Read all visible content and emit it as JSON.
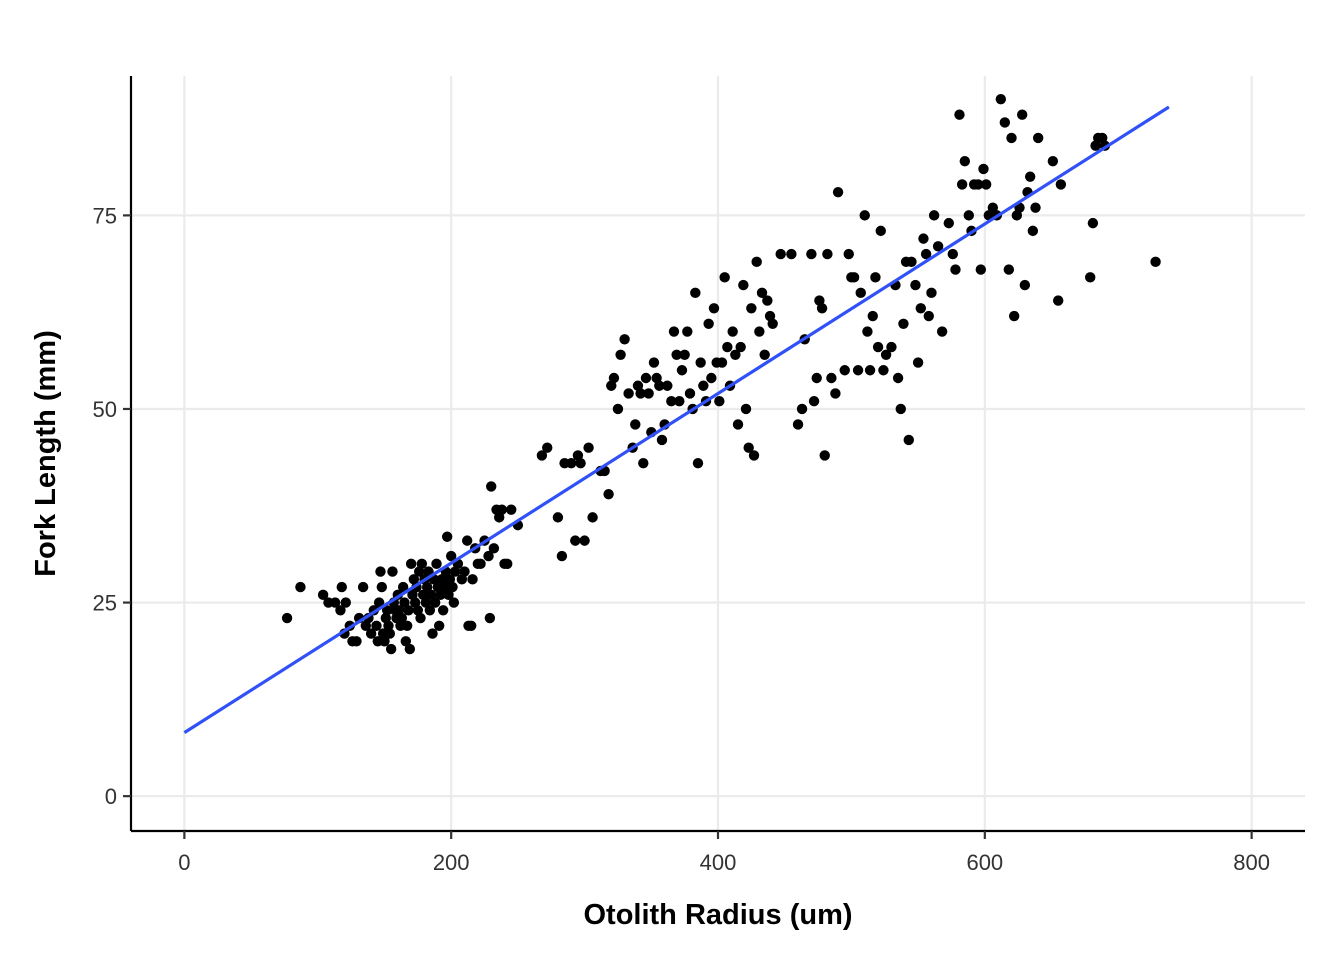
{
  "chart_data": {
    "type": "scatter",
    "title": "",
    "xlabel": "Otolith Radius (um)",
    "ylabel": "Fork Length (mm)",
    "xlim": [
      -40,
      840
    ],
    "ylim": [
      -4.5,
      93
    ],
    "x_ticks": [
      0,
      200,
      400,
      600,
      800
    ],
    "y_ticks": [
      0,
      25,
      50,
      75
    ],
    "x_tick_labels": [
      "0",
      "200",
      "400",
      "600",
      "800"
    ],
    "y_tick_labels": [
      "0",
      "25",
      "50",
      "75"
    ],
    "grid": true,
    "legend": "none",
    "point_color": "#000000",
    "line_color": "#3050F8",
    "fit_line": {
      "x": [
        0,
        738
      ],
      "y": [
        8.2,
        89
      ]
    },
    "points": [
      [
        77,
        23
      ],
      [
        87,
        27
      ],
      [
        104,
        26
      ],
      [
        108,
        25
      ],
      [
        113,
        25
      ],
      [
        117,
        24
      ],
      [
        118,
        27
      ],
      [
        120,
        21
      ],
      [
        121,
        25
      ],
      [
        124,
        22
      ],
      [
        126,
        20
      ],
      [
        129,
        20
      ],
      [
        131,
        23
      ],
      [
        134,
        27
      ],
      [
        136,
        22
      ],
      [
        138,
        23
      ],
      [
        140,
        21
      ],
      [
        142,
        24
      ],
      [
        144,
        22
      ],
      [
        145,
        20
      ],
      [
        146,
        25
      ],
      [
        147,
        29
      ],
      [
        148,
        27
      ],
      [
        149,
        21
      ],
      [
        150,
        20
      ],
      [
        151,
        23
      ],
      [
        152,
        24
      ],
      [
        153,
        22
      ],
      [
        154,
        21
      ],
      [
        155,
        19
      ],
      [
        156,
        29
      ],
      [
        157,
        25
      ],
      [
        158,
        24
      ],
      [
        159,
        23
      ],
      [
        160,
        26
      ],
      [
        161,
        24
      ],
      [
        162,
        22
      ],
      [
        163,
        23
      ],
      [
        164,
        27
      ],
      [
        165,
        25
      ],
      [
        166,
        20
      ],
      [
        167,
        22
      ],
      [
        168,
        24
      ],
      [
        169,
        19
      ],
      [
        170,
        30
      ],
      [
        171,
        26
      ],
      [
        172,
        28
      ],
      [
        173,
        25
      ],
      [
        174,
        27
      ],
      [
        175,
        24
      ],
      [
        176,
        29
      ],
      [
        177,
        23
      ],
      [
        178,
        30
      ],
      [
        179,
        26
      ],
      [
        180,
        28
      ],
      [
        181,
        25
      ],
      [
        182,
        27
      ],
      [
        183,
        29
      ],
      [
        184,
        24
      ],
      [
        185,
        26
      ],
      [
        186,
        21
      ],
      [
        187,
        28
      ],
      [
        188,
        25
      ],
      [
        189,
        30
      ],
      [
        190,
        27
      ],
      [
        191,
        22
      ],
      [
        192,
        26
      ],
      [
        193,
        28
      ],
      [
        194,
        24
      ],
      [
        195,
        27
      ],
      [
        196,
        29
      ],
      [
        197,
        33.5
      ],
      [
        198,
        26
      ],
      [
        199,
        28
      ],
      [
        200,
        31
      ],
      [
        201,
        27
      ],
      [
        202,
        25
      ],
      [
        203,
        29
      ],
      [
        205,
        30
      ],
      [
        208,
        28
      ],
      [
        210,
        29
      ],
      [
        212,
        33
      ],
      [
        213,
        22
      ],
      [
        215,
        22
      ],
      [
        216,
        28
      ],
      [
        218,
        32
      ],
      [
        220,
        30
      ],
      [
        222,
        30
      ],
      [
        225,
        33
      ],
      [
        228,
        31
      ],
      [
        229,
        23
      ],
      [
        230,
        40
      ],
      [
        232,
        32
      ],
      [
        234,
        37
      ],
      [
        236,
        36
      ],
      [
        238,
        37
      ],
      [
        240,
        30
      ],
      [
        242,
        30
      ],
      [
        245,
        37
      ],
      [
        250,
        35
      ],
      [
        268,
        44
      ],
      [
        272,
        45
      ],
      [
        280,
        36
      ],
      [
        283,
        31
      ],
      [
        285,
        43
      ],
      [
        290,
        43
      ],
      [
        293,
        33
      ],
      [
        295,
        44
      ],
      [
        297,
        43
      ],
      [
        300,
        33
      ],
      [
        303,
        45
      ],
      [
        306,
        36
      ],
      [
        312,
        42
      ],
      [
        315,
        42
      ],
      [
        318,
        39
      ],
      [
        320,
        53
      ],
      [
        322,
        54
      ],
      [
        325,
        50
      ],
      [
        327,
        57
      ],
      [
        330,
        59
      ],
      [
        333,
        52
      ],
      [
        336,
        45
      ],
      [
        338,
        48
      ],
      [
        340,
        53
      ],
      [
        342,
        52
      ],
      [
        344,
        43
      ],
      [
        346,
        54
      ],
      [
        348,
        52
      ],
      [
        350,
        47
      ],
      [
        352,
        56
      ],
      [
        354,
        54
      ],
      [
        356,
        53
      ],
      [
        358,
        46
      ],
      [
        360,
        48
      ],
      [
        362,
        53
      ],
      [
        365,
        51
      ],
      [
        367,
        60
      ],
      [
        369,
        57
      ],
      [
        371,
        51
      ],
      [
        373,
        55
      ],
      [
        375,
        57
      ],
      [
        377,
        60
      ],
      [
        379,
        52
      ],
      [
        381,
        50
      ],
      [
        383,
        65
      ],
      [
        385,
        43
      ],
      [
        387,
        56
      ],
      [
        389,
        53
      ],
      [
        391,
        51
      ],
      [
        393,
        61
      ],
      [
        395,
        54
      ],
      [
        397,
        63
      ],
      [
        399,
        56
      ],
      [
        401,
        51
      ],
      [
        403,
        56
      ],
      [
        405,
        67
      ],
      [
        407,
        58
      ],
      [
        409,
        53
      ],
      [
        411,
        60
      ],
      [
        413,
        57
      ],
      [
        415,
        48
      ],
      [
        417,
        58
      ],
      [
        419,
        66
      ],
      [
        421,
        50
      ],
      [
        423,
        45
      ],
      [
        425,
        63
      ],
      [
        427,
        44
      ],
      [
        429,
        69
      ],
      [
        431,
        60
      ],
      [
        433,
        65
      ],
      [
        435,
        57
      ],
      [
        437,
        64
      ],
      [
        439,
        62
      ],
      [
        441,
        61
      ],
      [
        447,
        70
      ],
      [
        455,
        70
      ],
      [
        460,
        48
      ],
      [
        463,
        50
      ],
      [
        465,
        59
      ],
      [
        470,
        70
      ],
      [
        472,
        51
      ],
      [
        474,
        54
      ],
      [
        476,
        64
      ],
      [
        478,
        63
      ],
      [
        480,
        44
      ],
      [
        482,
        70
      ],
      [
        485,
        54
      ],
      [
        488,
        52
      ],
      [
        490,
        78
      ],
      [
        495,
        55
      ],
      [
        498,
        70
      ],
      [
        500,
        67
      ],
      [
        502,
        67
      ],
      [
        505,
        55
      ],
      [
        507,
        65
      ],
      [
        510,
        75
      ],
      [
        512,
        60
      ],
      [
        514,
        55
      ],
      [
        516,
        62
      ],
      [
        518,
        67
      ],
      [
        520,
        58
      ],
      [
        522,
        73
      ],
      [
        524,
        55
      ],
      [
        526,
        57
      ],
      [
        530,
        58
      ],
      [
        533,
        66
      ],
      [
        535,
        54
      ],
      [
        537,
        50
      ],
      [
        539,
        61
      ],
      [
        541,
        69
      ],
      [
        543,
        46
      ],
      [
        545,
        69
      ],
      [
        548,
        66
      ],
      [
        550,
        56
      ],
      [
        552,
        63
      ],
      [
        554,
        72
      ],
      [
        556,
        70
      ],
      [
        558,
        62
      ],
      [
        560,
        65
      ],
      [
        562,
        75
      ],
      [
        565,
        71
      ],
      [
        568,
        60
      ],
      [
        573,
        74
      ],
      [
        576,
        70
      ],
      [
        578,
        68
      ],
      [
        581,
        88
      ],
      [
        583,
        79
      ],
      [
        585,
        82
      ],
      [
        588,
        75
      ],
      [
        590,
        73
      ],
      [
        592,
        79
      ],
      [
        595,
        79
      ],
      [
        597,
        68
      ],
      [
        599,
        81
      ],
      [
        601,
        79
      ],
      [
        603,
        75
      ],
      [
        606,
        76
      ],
      [
        609,
        75
      ],
      [
        612,
        90
      ],
      [
        615,
        87
      ],
      [
        618,
        68
      ],
      [
        620,
        85
      ],
      [
        622,
        62
      ],
      [
        624,
        75
      ],
      [
        626,
        76
      ],
      [
        628,
        88
      ],
      [
        630,
        66
      ],
      [
        632,
        78
      ],
      [
        634,
        80
      ],
      [
        636,
        73
      ],
      [
        638,
        76
      ],
      [
        640,
        85
      ],
      [
        651,
        82
      ],
      [
        655,
        64
      ],
      [
        657,
        79
      ],
      [
        679,
        67
      ],
      [
        681,
        74
      ],
      [
        683,
        84
      ],
      [
        685,
        85
      ],
      [
        688,
        85
      ],
      [
        690,
        84
      ],
      [
        728,
        69
      ]
    ]
  }
}
